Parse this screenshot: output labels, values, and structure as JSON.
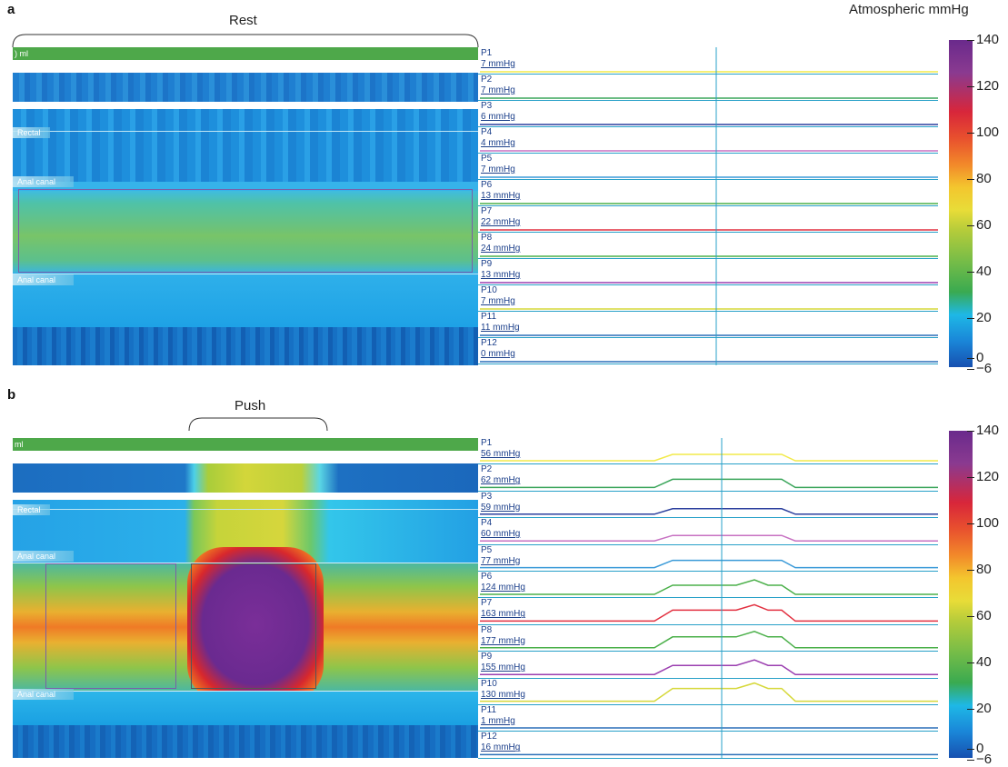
{
  "panels": [
    {
      "letter": "a",
      "bracket_label": "Rest",
      "volume_label": ") ml",
      "region_labels": {
        "rectal": "Rectal",
        "anal_upper": "Anal canal",
        "anal_lower": "Anal canal"
      },
      "channels": [
        {
          "name": "P1",
          "value": "7 mmHg"
        },
        {
          "name": "P2",
          "value": "7 mmHg"
        },
        {
          "name": "P3",
          "value": "6 mmHg"
        },
        {
          "name": "P4",
          "value": "4 mmHg"
        },
        {
          "name": "P5",
          "value": "7 mmHg"
        },
        {
          "name": "P6",
          "value": "13 mmHg"
        },
        {
          "name": "P7",
          "value": "22 mmHg"
        },
        {
          "name": "P8",
          "value": "24 mmHg"
        },
        {
          "name": "P9",
          "value": "13 mmHg"
        },
        {
          "name": "P10",
          "value": "7 mmHg"
        },
        {
          "name": "P11",
          "value": "11 mmHg"
        },
        {
          "name": "P12",
          "value": "0 mmHg"
        }
      ],
      "scale_title": "Atmospheric mmHg",
      "scale_ticks": [
        "140",
        "120",
        "100",
        "80",
        "60",
        "40",
        "20",
        "0",
        "−6"
      ]
    },
    {
      "letter": "b",
      "bracket_label": "Push",
      "volume_label": "ml",
      "region_labels": {
        "rectal": "Rectal",
        "anal_upper": "Anal canal",
        "anal_lower": "Anal canal"
      },
      "channels": [
        {
          "name": "P1",
          "value": "56 mmHg"
        },
        {
          "name": "P2",
          "value": "62 mmHg"
        },
        {
          "name": "P3",
          "value": "59 mmHg"
        },
        {
          "name": "P4",
          "value": "60 mmHg"
        },
        {
          "name": "P5",
          "value": "77 mmHg"
        },
        {
          "name": "P6",
          "value": "124 mmHg"
        },
        {
          "name": "P7",
          "value": "163 mmHg"
        },
        {
          "name": "P8",
          "value": "177 mmHg"
        },
        {
          "name": "P9",
          "value": "155 mmHg"
        },
        {
          "name": "P10",
          "value": "130 mmHg"
        },
        {
          "name": "P11",
          "value": "1 mmHg"
        },
        {
          "name": "P12",
          "value": "16 mmHg"
        }
      ],
      "scale_ticks": [
        "140",
        "120",
        "100",
        "80",
        "60",
        "40",
        "20",
        "0",
        "−6"
      ]
    }
  ],
  "colors": {
    "trace_colors": [
      "#f2ea4a",
      "#3aa55a",
      "#2b3f9e",
      "#c771c2",
      "#3a9ad8",
      "#4bb04a",
      "#e23040",
      "#4bb04a",
      "#9b3fb0",
      "#d6d83a",
      "#2a6fb8",
      "#2a6fb8"
    ],
    "volume_bar": "#4ea84a",
    "channel_rule": "#27a0c8"
  }
}
